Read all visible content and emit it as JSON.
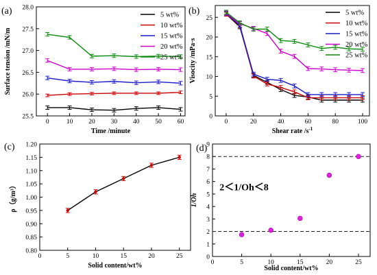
{
  "chart_data": [
    {
      "id": "a",
      "type": "line",
      "panel_label": "(a)",
      "xlabel": "Time /minute",
      "ylabel": "Surface tension /mN/m",
      "xlim": [
        -5,
        62
      ],
      "ylim": [
        25.5,
        28.0
      ],
      "x_ticks": [
        0,
        10,
        20,
        30,
        40,
        50,
        60
      ],
      "y_ticks": [
        25.5,
        26.0,
        26.5,
        27.0,
        27.5,
        28.0
      ],
      "y_tick_labels": [
        "25.5",
        "26.0",
        "26.5",
        "27.0",
        "27.5",
        "28.0"
      ],
      "x": [
        0,
        10,
        20,
        30,
        40,
        50,
        60
      ],
      "legend_position": "top-right",
      "series": [
        {
          "name": "5 wt%",
          "color": "#000000",
          "values": [
            25.69,
            25.69,
            25.64,
            25.63,
            25.67,
            25.69,
            25.65
          ],
          "error": 0.04
        },
        {
          "name": "10 wt%",
          "color": "#cc0000",
          "values": [
            25.97,
            26.0,
            26.01,
            26.02,
            26.02,
            26.02,
            26.04
          ],
          "error": 0.03
        },
        {
          "name": "15 wt%",
          "color": "#1a1acc",
          "values": [
            26.37,
            26.3,
            26.27,
            26.29,
            26.26,
            26.28,
            26.25
          ],
          "error": 0.04
        },
        {
          "name": "20 wt%",
          "color": "#cc00cc",
          "values": [
            26.77,
            26.57,
            26.57,
            26.58,
            26.56,
            26.57,
            26.56
          ],
          "error": 0.04
        },
        {
          "name": "25 wt%",
          "color": "#0a8a0a",
          "values": [
            27.37,
            27.3,
            26.87,
            26.88,
            26.86,
            26.87,
            26.86
          ],
          "error": 0.04
        }
      ]
    },
    {
      "id": "b",
      "type": "line",
      "panel_label": "(b)",
      "xlabel": "Shear rate /s",
      "xlabel_sup": "-1",
      "ylabel": "Visocity /mPa·s",
      "xlim": [
        -8,
        105
      ],
      "ylim": [
        0,
        28
      ],
      "x_ticks": [
        0,
        20,
        40,
        60,
        80,
        100
      ],
      "y_ticks": [
        0,
        5,
        10,
        15,
        20,
        25
      ],
      "x": [
        0,
        10,
        20,
        30,
        40,
        50,
        60,
        70,
        80,
        90,
        100
      ],
      "legend_position": "top-right",
      "series": [
        {
          "name": "5 wt%",
          "color": "#000000",
          "values": [
            25.8,
            22.6,
            10.3,
            8.5,
            6.7,
            5.2,
            4.8,
            4.0,
            4.0,
            4.0,
            4.0
          ],
          "error": 0.5
        },
        {
          "name": "10 wt%",
          "color": "#cc0000",
          "values": [
            25.8,
            22.9,
            10.1,
            8.1,
            7.2,
            6.1,
            4.6,
            4.6,
            4.6,
            4.6,
            4.6
          ],
          "error": 0.5
        },
        {
          "name": "15 wt%",
          "color": "#1a1acc",
          "values": [
            26.0,
            23.0,
            10.6,
            9.3,
            9.0,
            7.6,
            5.4,
            5.4,
            5.4,
            5.4,
            5.4
          ],
          "error": 0.5
        },
        {
          "name": "20 wt%",
          "color": "#cc00cc",
          "values": [
            26.1,
            23.4,
            22.2,
            20.9,
            16.4,
            15.1,
            12.0,
            11.9,
            11.7,
            11.6,
            11.5
          ],
          "error": 0.5
        },
        {
          "name": "25 wt%",
          "color": "#0a8a0a",
          "values": [
            26.3,
            23.6,
            22.0,
            22.0,
            19.1,
            18.9,
            18.0,
            17.1,
            17.4,
            17.0,
            16.9
          ],
          "error": 0.5
        }
      ]
    },
    {
      "id": "c",
      "type": "line",
      "panel_label": "(c)",
      "xlabel": "Solid content/wt%",
      "ylabel": "ρ（g/m³）",
      "xlim": [
        0,
        27
      ],
      "ylim": [
        0.8,
        1.2
      ],
      "x_ticks": [
        0,
        5,
        10,
        15,
        20,
        25
      ],
      "y_ticks": [
        0.8,
        0.85,
        0.9,
        0.95,
        1.0,
        1.05,
        1.1,
        1.15,
        1.2
      ],
      "y_tick_labels": [
        "0.80",
        "0.85",
        "0.90",
        "0.95",
        "1.00",
        "1.05",
        "1.10",
        "1.15",
        "1.20"
      ],
      "x": [
        5,
        10,
        15,
        20,
        25
      ],
      "series": [
        {
          "color": "#000000",
          "marker_color": "#cc0000",
          "values": [
            0.95,
            1.02,
            1.07,
            1.12,
            1.15
          ],
          "error": 0.008
        }
      ]
    },
    {
      "id": "d",
      "type": "scatter",
      "panel_label": "(d)",
      "xlabel": "Solid content/wt%",
      "ylabel": "1/Oh",
      "xlim": [
        0,
        27
      ],
      "ylim": [
        0,
        9
      ],
      "x_ticks": [
        0,
        5,
        10,
        15,
        20,
        25
      ],
      "y_ticks": [
        0,
        1,
        2,
        3,
        4,
        5,
        6,
        7,
        8,
        9
      ],
      "x": [
        5,
        10,
        15,
        20,
        25
      ],
      "series": [
        {
          "color": "#dd22dd",
          "values": [
            1.75,
            2.1,
            3.05,
            6.5,
            8.0
          ]
        }
      ],
      "reference_lines": [
        2,
        8
      ],
      "annotation": "2＜1/Oh＜8"
    }
  ]
}
